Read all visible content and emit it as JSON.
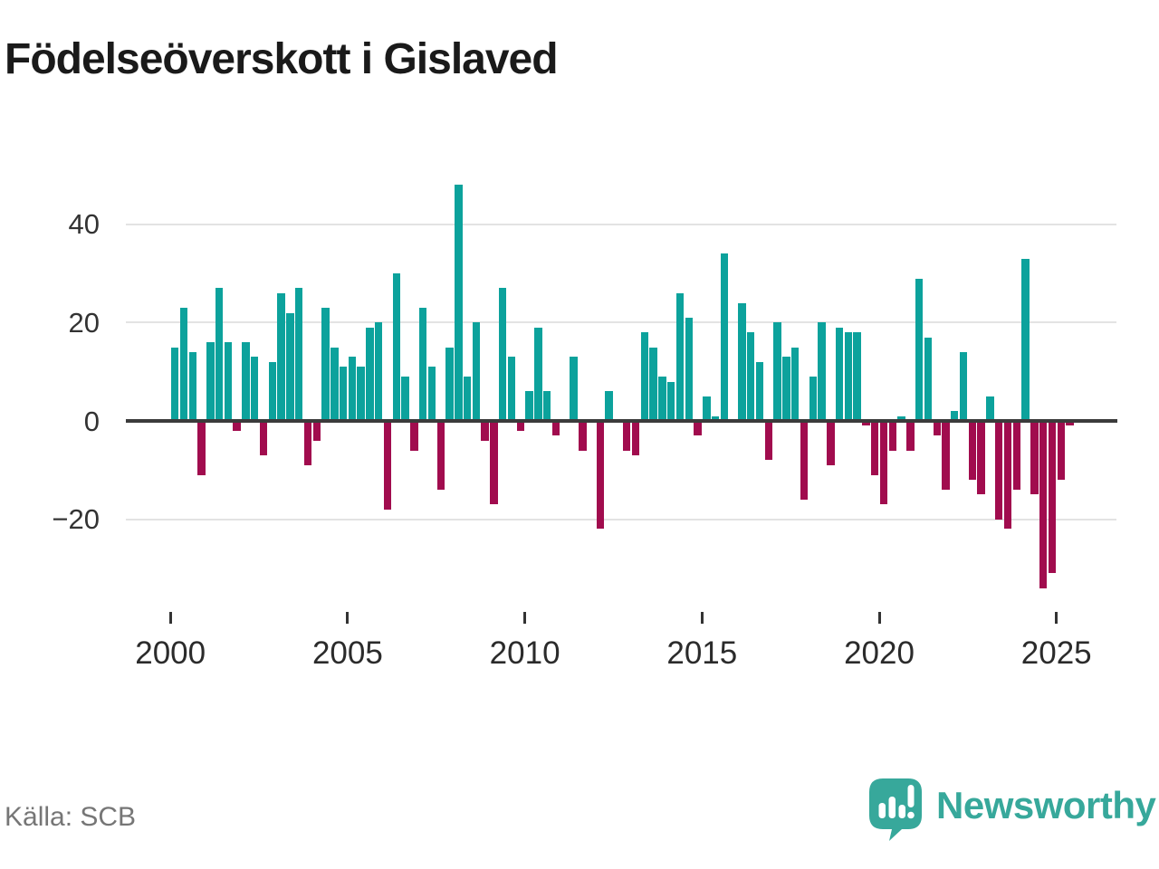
{
  "chart_data": {
    "type": "bar",
    "title": "Födelseöverskott i Gislaved",
    "source": "Källa: SCB",
    "x_axis": {
      "ticks": [
        2000,
        2005,
        2010,
        2015,
        2020,
        2025
      ],
      "frequency": "quarterly",
      "range_start": "2000 Q1",
      "range_end": "2025 Q2"
    },
    "y_axis": {
      "ticks": [
        40,
        20,
        0,
        -20
      ],
      "ylim": [
        -36,
        50
      ],
      "grid": true
    },
    "colors": {
      "positive": "#0ca29c",
      "negative": "#a10c4e",
      "zero_line": "#3b3b3b",
      "gridline": "#e3e3e3"
    },
    "legend": "none",
    "series": [
      {
        "name": "Födelseöverskott",
        "points": [
          {
            "q": "2000 Q1",
            "v": 15
          },
          {
            "q": "2000 Q2",
            "v": 23
          },
          {
            "q": "2000 Q3",
            "v": 14
          },
          {
            "q": "2000 Q4",
            "v": -11
          },
          {
            "q": "2001 Q1",
            "v": 16
          },
          {
            "q": "2001 Q2",
            "v": 27
          },
          {
            "q": "2001 Q3",
            "v": 16
          },
          {
            "q": "2001 Q4",
            "v": -2
          },
          {
            "q": "2002 Q1",
            "v": 16
          },
          {
            "q": "2002 Q2",
            "v": 13
          },
          {
            "q": "2002 Q3",
            "v": -7
          },
          {
            "q": "2002 Q4",
            "v": 12
          },
          {
            "q": "2003 Q1",
            "v": 26
          },
          {
            "q": "2003 Q2",
            "v": 22
          },
          {
            "q": "2003 Q3",
            "v": 27
          },
          {
            "q": "2003 Q4",
            "v": -9
          },
          {
            "q": "2004 Q1",
            "v": -4
          },
          {
            "q": "2004 Q2",
            "v": 23
          },
          {
            "q": "2004 Q3",
            "v": 15
          },
          {
            "q": "2004 Q4",
            "v": 11
          },
          {
            "q": "2005 Q1",
            "v": 13
          },
          {
            "q": "2005 Q2",
            "v": 11
          },
          {
            "q": "2005 Q3",
            "v": 19
          },
          {
            "q": "2005 Q4",
            "v": 20
          },
          {
            "q": "2006 Q1",
            "v": -18
          },
          {
            "q": "2006 Q2",
            "v": 30
          },
          {
            "q": "2006 Q3",
            "v": 9
          },
          {
            "q": "2006 Q4",
            "v": -6
          },
          {
            "q": "2007 Q1",
            "v": 23
          },
          {
            "q": "2007 Q2",
            "v": 11
          },
          {
            "q": "2007 Q3",
            "v": -14
          },
          {
            "q": "2007 Q4",
            "v": 15
          },
          {
            "q": "2008 Q1",
            "v": 48
          },
          {
            "q": "2008 Q2",
            "v": 9
          },
          {
            "q": "2008 Q3",
            "v": 20
          },
          {
            "q": "2008 Q4",
            "v": -4
          },
          {
            "q": "2009 Q1",
            "v": -17
          },
          {
            "q": "2009 Q2",
            "v": 27
          },
          {
            "q": "2009 Q3",
            "v": 13
          },
          {
            "q": "2009 Q4",
            "v": -2
          },
          {
            "q": "2010 Q1",
            "v": 6
          },
          {
            "q": "2010 Q2",
            "v": 19
          },
          {
            "q": "2010 Q3",
            "v": 6
          },
          {
            "q": "2010 Q4",
            "v": -3
          },
          {
            "q": "2011 Q1",
            "v": 0
          },
          {
            "q": "2011 Q2",
            "v": 13
          },
          {
            "q": "2011 Q3",
            "v": -6
          },
          {
            "q": "2011 Q4",
            "v": 0
          },
          {
            "q": "2012 Q1",
            "v": -22
          },
          {
            "q": "2012 Q2",
            "v": 6
          },
          {
            "q": "2012 Q3",
            "v": 0
          },
          {
            "q": "2012 Q4",
            "v": -6
          },
          {
            "q": "2013 Q1",
            "v": -7
          },
          {
            "q": "2013 Q2",
            "v": 18
          },
          {
            "q": "2013 Q3",
            "v": 15
          },
          {
            "q": "2013 Q4",
            "v": 9
          },
          {
            "q": "2014 Q1",
            "v": 8
          },
          {
            "q": "2014 Q2",
            "v": 26
          },
          {
            "q": "2014 Q3",
            "v": 21
          },
          {
            "q": "2014 Q4",
            "v": -3
          },
          {
            "q": "2015 Q1",
            "v": 5
          },
          {
            "q": "2015 Q2",
            "v": 1
          },
          {
            "q": "2015 Q3",
            "v": 34
          },
          {
            "q": "2015 Q4",
            "v": 0
          },
          {
            "q": "2016 Q1",
            "v": 24
          },
          {
            "q": "2016 Q2",
            "v": 18
          },
          {
            "q": "2016 Q3",
            "v": 12
          },
          {
            "q": "2016 Q4",
            "v": -8
          },
          {
            "q": "2017 Q1",
            "v": 20
          },
          {
            "q": "2017 Q2",
            "v": 13
          },
          {
            "q": "2017 Q3",
            "v": 15
          },
          {
            "q": "2017 Q4",
            "v": -16
          },
          {
            "q": "2018 Q1",
            "v": 9
          },
          {
            "q": "2018 Q2",
            "v": 20
          },
          {
            "q": "2018 Q3",
            "v": -9
          },
          {
            "q": "2018 Q4",
            "v": 19
          },
          {
            "q": "2019 Q1",
            "v": 18
          },
          {
            "q": "2019 Q2",
            "v": 18
          },
          {
            "q": "2019 Q3",
            "v": -1
          },
          {
            "q": "2019 Q4",
            "v": -11
          },
          {
            "q": "2020 Q1",
            "v": -17
          },
          {
            "q": "2020 Q2",
            "v": -6
          },
          {
            "q": "2020 Q3",
            "v": 1
          },
          {
            "q": "2020 Q4",
            "v": -6
          },
          {
            "q": "2021 Q1",
            "v": 29
          },
          {
            "q": "2021 Q2",
            "v": 17
          },
          {
            "q": "2021 Q3",
            "v": -3
          },
          {
            "q": "2021 Q4",
            "v": -14
          },
          {
            "q": "2022 Q1",
            "v": 2
          },
          {
            "q": "2022 Q2",
            "v": 14
          },
          {
            "q": "2022 Q3",
            "v": -12
          },
          {
            "q": "2022 Q4",
            "v": -15
          },
          {
            "q": "2023 Q1",
            "v": 5
          },
          {
            "q": "2023 Q2",
            "v": -20
          },
          {
            "q": "2023 Q3",
            "v": -22
          },
          {
            "q": "2023 Q4",
            "v": -14
          },
          {
            "q": "2024 Q1",
            "v": 33
          },
          {
            "q": "2024 Q2",
            "v": -15
          },
          {
            "q": "2024 Q3",
            "v": -34
          },
          {
            "q": "2024 Q4",
            "v": -31
          },
          {
            "q": "2025 Q1",
            "v": -12
          },
          {
            "q": "2025 Q2",
            "v": -1
          }
        ]
      }
    ]
  },
  "branding": {
    "logo_text": "Newsworthy",
    "logo_color": "#37a89b"
  }
}
